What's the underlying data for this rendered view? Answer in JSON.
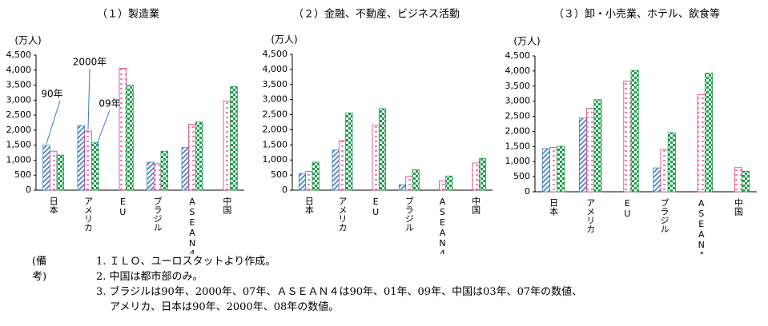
{
  "chart_data": [
    {
      "type": "bar",
      "title": "（１）製造業",
      "y_label": "(万人)",
      "categories": [
        "日本",
        "アメリカ",
        "EU",
        "ブラジル",
        "ASEAN4",
        "中国"
      ],
      "series": [
        {
          "name": "90年",
          "color": "#3a7fc4",
          "values": [
            1500,
            2150,
            null,
            930,
            1420,
            null
          ]
        },
        {
          "name": "2000年",
          "color": "#e8337f",
          "values": [
            1300,
            1970,
            4060,
            880,
            2200,
            2970
          ]
        },
        {
          "name": "09年",
          "color": "#1a9e4a",
          "values": [
            1170,
            1580,
            3500,
            1300,
            2270,
            3450
          ]
        }
      ],
      "ylim": [
        0,
        4500
      ],
      "yticks": [
        0,
        500,
        {
          "value": 1000,
          "label": "1,000"
        },
        {
          "value": 1500,
          "label": "1,500"
        },
        {
          "value": 2000,
          "label": "2,000"
        },
        {
          "value": 2500,
          "label": "2,500"
        },
        {
          "value": 3000,
          "label": "3,000"
        },
        {
          "value": 3500,
          "label": "3,500"
        },
        {
          "value": 4000,
          "label": "4,000"
        },
        {
          "value": 4500,
          "label": "4,500"
        }
      ]
    },
    {
      "type": "bar",
      "title": "（２）金融、不動産、ビジネス活動",
      "y_label": "(万人)",
      "categories": [
        "日本",
        "アメリカ",
        "EU",
        "ブラジル",
        "ASEAN4",
        "中国"
      ],
      "series": [
        {
          "color": "#3a7fc4",
          "values": [
            550,
            1330,
            null,
            180,
            null,
            null
          ]
        },
        {
          "color": "#e8337f",
          "values": [
            620,
            1640,
            2150,
            460,
            310,
            900
          ]
        },
        {
          "color": "#1a9e4a",
          "values": [
            930,
            2560,
            2700,
            680,
            470,
            1050
          ]
        }
      ],
      "ylim": [
        0,
        4500
      ],
      "yticks": [
        0,
        500,
        {
          "value": 1000,
          "label": "1,000"
        },
        {
          "value": 1500,
          "label": "1,500"
        },
        {
          "value": 2000,
          "label": "2,000"
        },
        {
          "value": 2500,
          "label": "2,500"
        },
        {
          "value": 3000,
          "label": "3,000"
        },
        {
          "value": 3500,
          "label": "3,500"
        },
        {
          "value": 4000,
          "label": "4,000"
        },
        {
          "value": 4500,
          "label": "4,500"
        }
      ]
    },
    {
      "type": "bar",
      "title": "（３）卸・小売業、ホテル、飲食等",
      "y_label": "(万人)",
      "categories": [
        "日本",
        "アメリカ",
        "EU",
        "ブラジル",
        "ASEAN4",
        "中国"
      ],
      "series": [
        {
          "color": "#3a7fc4",
          "values": [
            1430,
            2440,
            null,
            790,
            null,
            null
          ]
        },
        {
          "color": "#e8337f",
          "values": [
            1470,
            2770,
            3670,
            1400,
            3220,
            800
          ]
        },
        {
          "color": "#1a9e4a",
          "values": [
            1510,
            3050,
            4020,
            1960,
            3930,
            680
          ]
        }
      ],
      "ylim": [
        0,
        4500
      ],
      "yticks": [
        0,
        500,
        {
          "value": 1000,
          "label": "1,000"
        },
        {
          "value": 1500,
          "label": "1,500"
        },
        {
          "value": 2000,
          "label": "2,000"
        },
        {
          "value": 2500,
          "label": "2,500"
        },
        {
          "value": 3000,
          "label": "3,000"
        },
        {
          "value": 3500,
          "label": "3,500"
        },
        {
          "value": 4000,
          "label": "4,000"
        },
        {
          "value": 4500,
          "label": "4,500"
        }
      ]
    }
  ],
  "notes": {
    "label": "(備考)",
    "items": [
      "1.  ＩＬＯ、ユーロスタットより作成。",
      "2.  中国は都市部のみ。",
      "3.  ブラジルは90年、2000年、07年、ＡＳＥＡＮ４は90年、01年、09年、中国は03年、07年の数値、",
      "アメリカ、日本は90年、2000年、08年の数値。"
    ]
  }
}
